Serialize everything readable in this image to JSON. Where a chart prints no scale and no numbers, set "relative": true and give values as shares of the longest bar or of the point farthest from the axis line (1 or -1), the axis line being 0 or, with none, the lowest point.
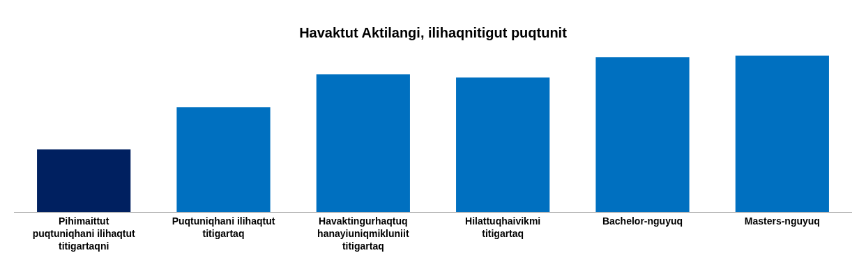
{
  "chart_data": {
    "type": "bar",
    "title": "Havaktut Aktilangi, ilihaqnitigut puqtunit",
    "categories": [
      "Pihimaittut puqtuniqhani ilihaqtut titigartaqni",
      "Puqtuniqhani ilihaqtut titigartaq",
      "Havaktingurhaqtuq hanayiuniqmikluniit titigartaq",
      "Hilattuqhaivikmi titigartaq",
      "Bachelor-nguyuq",
      "Masters-nguyuq"
    ],
    "values": [
      0.4,
      0.67,
      0.88,
      0.86,
      0.99,
      1
    ],
    "colors": [
      "#002060",
      "#0070c0",
      "#0070c0",
      "#0070c0",
      "#0070c0",
      "#0070c0"
    ],
    "relative": true
  }
}
